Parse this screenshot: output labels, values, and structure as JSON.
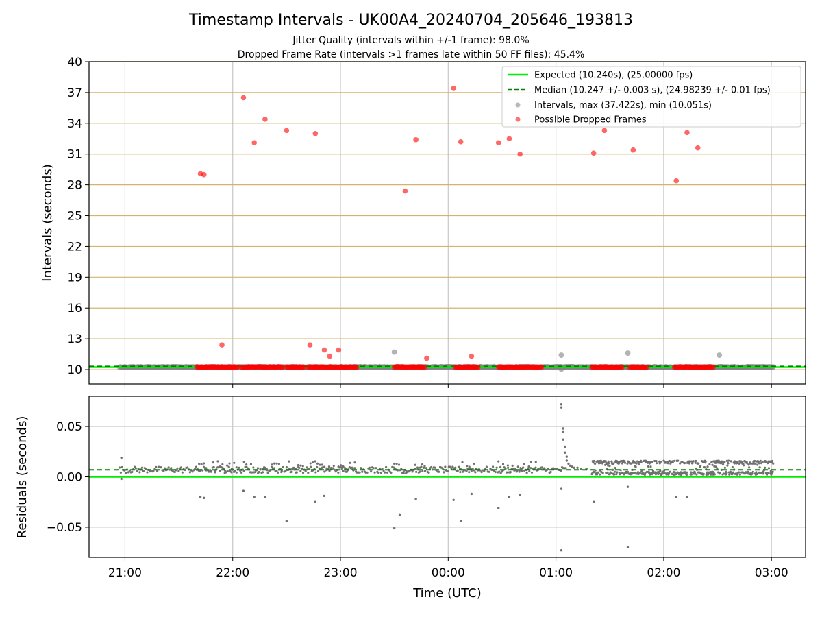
{
  "figure": {
    "title": "Timestamp Intervals - UK00A4_20240704_205646_193813",
    "subtitle_1": "Jitter Quality (intervals within +/-1 frame): 98.0%",
    "subtitle_2": "Dropped Frame Rate (intervals >1 frames late within 50 FF files): 45.4%"
  },
  "colors": {
    "expected": "#00ee00",
    "median": "#008000",
    "intervals": "#808080",
    "dropped": "#ff0000",
    "hgrid_top": "#d4b46a",
    "grid": "#c8c8c8"
  },
  "chart_data": [
    {
      "type": "scatter",
      "ylabel": "Intervals (seconds)",
      "ylim": [
        8.6,
        40
      ],
      "yticks": [
        "10",
        "13",
        "16",
        "19",
        "22",
        "25",
        "28",
        "31",
        "34",
        "37",
        "40"
      ],
      "grid": "horizontal lines at y ticks, vertical lines at x ticks",
      "legend_position": "top-right",
      "expected_value": 10.24,
      "median_value": 10.247,
      "legend": {
        "expected": "Expected (10.240s), (25.00000 fps)",
        "median": "Median (10.247 +/- 0.003 s), (24.98239 +/- 0.01 fps)",
        "intervals": "Intervals, max (37.422s), min (10.051s)",
        "dropped": "Possible Dropped Frames"
      },
      "dropped_clusters": [
        {
          "from": "21:40",
          "to": "22:03",
          "y": 10.24
        },
        {
          "from": "22:05",
          "to": "22:28",
          "y": 10.24
        },
        {
          "from": "22:30",
          "to": "22:40",
          "y": 10.24
        },
        {
          "from": "22:42",
          "to": "23:09",
          "y": 10.24
        },
        {
          "from": "23:30",
          "to": "23:47",
          "y": 10.24
        },
        {
          "from": "00:04",
          "to": "00:17",
          "y": 10.24
        },
        {
          "from": "00:28",
          "to": "00:52",
          "y": 10.24
        },
        {
          "from": "01:20",
          "to": "01:37",
          "y": 10.24
        },
        {
          "from": "01:41",
          "to": "01:51",
          "y": 10.24
        },
        {
          "from": "02:06",
          "to": "02:28",
          "y": 10.24
        }
      ],
      "dropped_outliers": [
        {
          "t": "21:42",
          "y": 29.1
        },
        {
          "t": "21:44",
          "y": 29.0
        },
        {
          "t": "21:54",
          "y": 12.4
        },
        {
          "t": "22:06",
          "y": 36.5
        },
        {
          "t": "22:12",
          "y": 32.1
        },
        {
          "t": "22:18",
          "y": 34.4
        },
        {
          "t": "22:30",
          "y": 33.3
        },
        {
          "t": "22:43",
          "y": 12.4
        },
        {
          "t": "22:46",
          "y": 33.0
        },
        {
          "t": "22:51",
          "y": 11.9
        },
        {
          "t": "22:54",
          "y": 11.3
        },
        {
          "t": "22:59",
          "y": 11.9
        },
        {
          "t": "23:36",
          "y": 27.4
        },
        {
          "t": "23:42",
          "y": 32.4
        },
        {
          "t": "23:48",
          "y": 11.1
        },
        {
          "t": "00:03",
          "y": 37.4
        },
        {
          "t": "00:07",
          "y": 32.2
        },
        {
          "t": "00:13",
          "y": 11.3
        },
        {
          "t": "00:28",
          "y": 32.1
        },
        {
          "t": "00:34",
          "y": 32.5
        },
        {
          "t": "00:40",
          "y": 31.0
        },
        {
          "t": "01:21",
          "y": 31.1
        },
        {
          "t": "01:27",
          "y": 33.3
        },
        {
          "t": "01:43",
          "y": 31.4
        },
        {
          "t": "02:07",
          "y": 28.4
        },
        {
          "t": "02:13",
          "y": 33.1
        },
        {
          "t": "02:19",
          "y": 31.6
        }
      ],
      "interval_band": {
        "from": "20:57",
        "to": "03:01",
        "y": 10.24
      },
      "interval_outliers": [
        {
          "t": "23:30",
          "y": 11.7
        },
        {
          "t": "01:03",
          "y": 11.4
        },
        {
          "t": "01:40",
          "y": 11.6
        },
        {
          "t": "02:31",
          "y": 11.4
        },
        {
          "t": "01:03",
          "y": 10.05
        }
      ]
    },
    {
      "type": "scatter",
      "ylabel": "Residuals (seconds)",
      "xlabel": "Time (UTC)",
      "ylim": [
        -0.08,
        0.08
      ],
      "yticks": [
        "0.05",
        "0.00",
        "−0.05"
      ],
      "ytick_values": [
        0.05,
        0.0,
        -0.05
      ],
      "xticks": [
        "21:00",
        "22:00",
        "23:00",
        "00:00",
        "01:00",
        "02:00",
        "03:00"
      ],
      "xlim": [
        "20:40",
        "03:19"
      ],
      "expected_value": 0.0,
      "median_value": 0.007,
      "main_band": {
        "from": "20:57",
        "to": "01:06",
        "y": 0.007,
        "spread": 0.003
      },
      "dense_band": {
        "from": "01:20",
        "to": "03:01",
        "y_low": 0.002,
        "y_high": 0.016
      },
      "outliers": [
        {
          "t": "20:58",
          "y": 0.019
        },
        {
          "t": "20:58",
          "y": -0.002
        },
        {
          "t": "21:42",
          "y": -0.02
        },
        {
          "t": "21:44",
          "y": -0.021
        },
        {
          "t": "22:06",
          "y": -0.014
        },
        {
          "t": "22:12",
          "y": -0.02
        },
        {
          "t": "22:18",
          "y": -0.02
        },
        {
          "t": "22:30",
          "y": -0.044
        },
        {
          "t": "22:46",
          "y": -0.025
        },
        {
          "t": "22:51",
          "y": -0.019
        },
        {
          "t": "23:30",
          "y": -0.051
        },
        {
          "t": "23:33",
          "y": -0.038
        },
        {
          "t": "23:42",
          "y": -0.022
        },
        {
          "t": "00:03",
          "y": -0.023
        },
        {
          "t": "00:07",
          "y": -0.044
        },
        {
          "t": "00:13",
          "y": -0.017
        },
        {
          "t": "00:28",
          "y": -0.031
        },
        {
          "t": "00:34",
          "y": -0.02
        },
        {
          "t": "00:40",
          "y": -0.018
        },
        {
          "t": "01:03",
          "y": -0.012
        },
        {
          "t": "01:03",
          "y": -0.073
        },
        {
          "t": "01:21",
          "y": -0.025
        },
        {
          "t": "01:40",
          "y": -0.01
        },
        {
          "t": "01:40",
          "y": -0.07
        },
        {
          "t": "02:07",
          "y": -0.02
        },
        {
          "t": "02:13",
          "y": -0.02
        },
        {
          "t": "01:03",
          "y": 0.072
        },
        {
          "t": "01:03",
          "y": 0.069
        },
        {
          "t": "01:04",
          "y": 0.048
        },
        {
          "t": "01:04",
          "y": 0.045
        },
        {
          "t": "01:04",
          "y": 0.037
        },
        {
          "t": "01:05",
          "y": 0.03
        },
        {
          "t": "01:05",
          "y": 0.024
        },
        {
          "t": "01:06",
          "y": 0.02
        },
        {
          "t": "01:06",
          "y": 0.016
        },
        {
          "t": "01:07",
          "y": 0.013
        },
        {
          "t": "01:08",
          "y": 0.011
        },
        {
          "t": "01:09",
          "y": 0.01
        },
        {
          "t": "01:10",
          "y": 0.009
        },
        {
          "t": "01:12",
          "y": 0.009
        },
        {
          "t": "01:14",
          "y": 0.008
        },
        {
          "t": "01:17",
          "y": 0.008
        }
      ]
    }
  ]
}
